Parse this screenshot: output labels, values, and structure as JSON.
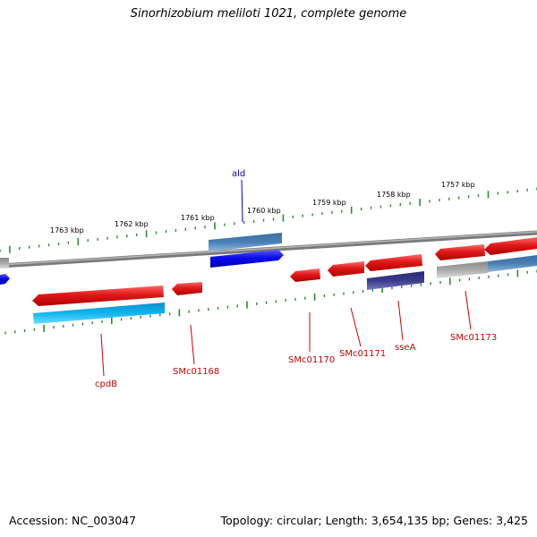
{
  "title": "Sinorhizobium meliloti 1021, complete genome",
  "footer": {
    "accession": "Accession: NC_003047",
    "summary": "Topology: circular; Length: 3,654,135 bp; Genes: 3,425"
  },
  "colors": {
    "backbone": "#777777",
    "tick": "#2e8b2e",
    "gene_label": "#cc0000",
    "gene_label_alt": "#0000cc",
    "gene_red": "#e01818",
    "gene_blue": "#0a0aee",
    "gene_steel": "#4a7fb5",
    "gene_cyan": "#12b4ee",
    "gene_navy": "#3a3a8c",
    "gene_gray": "#aaaaaa"
  },
  "tick_labels": [
    "1763 kbp",
    "1762 kbp",
    "1761 kbp",
    "1760 kbp",
    "1759 kbp",
    "1758 kbp",
    "1757 kbp"
  ],
  "gene_labels": [
    {
      "name": "ald",
      "color": "blue"
    },
    {
      "name": "cpdB",
      "color": "red"
    },
    {
      "name": "SMc01168",
      "color": "red"
    },
    {
      "name": "SMc01170",
      "color": "red"
    },
    {
      "name": "SMc01171",
      "color": "red"
    },
    {
      "name": "sseA",
      "color": "red"
    },
    {
      "name": "SMc01173",
      "color": "red"
    }
  ]
}
